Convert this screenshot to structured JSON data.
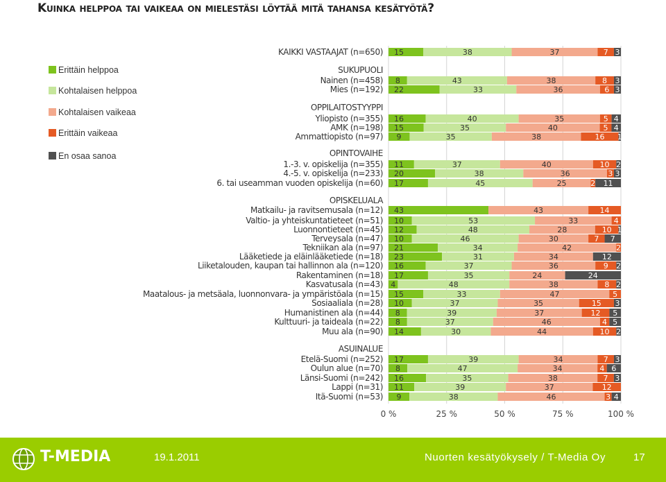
{
  "slide": {
    "title": "Kuinka helppoa tai vaikeaa on mielestäsi löytää mitä tahansa kesätyötä?",
    "date": "19.1.2011",
    "footer": "Nuorten kesätyökysely / T-Media Oy",
    "page": "17",
    "brand": "T-MEDIA"
  },
  "chart_data": {
    "type": "bar",
    "stacked": true,
    "orientation": "horizontal",
    "title": "Kuinka helppoa tai vaikeaa on mielestäsi löytää mitä tahansa kesätyötä?",
    "xlim": [
      0,
      100
    ],
    "xticks": [
      "0 %",
      "25 %",
      "50 %",
      "75 %",
      "100 %"
    ],
    "legend_position": "left",
    "series": [
      {
        "name": "Erittäin helppoa",
        "color": "#7ec31e"
      },
      {
        "name": "Kohtalaisen helppoa",
        "color": "#c6e69c"
      },
      {
        "name": "Kohtalaisen vaikeaa",
        "color": "#f3a98d"
      },
      {
        "name": "Erittäin vaikeaa",
        "color": "#e55a24"
      },
      {
        "name": "En osaa sanoa",
        "color": "#505050"
      }
    ],
    "groups": [
      "KAIKKI VASTAAJAT (n=650)",
      "SUKUPUOLI",
      "OPPILAITOSTYYPPI",
      "OPINTOVAIHE",
      "OPISKELUALA",
      "ASUINALUE"
    ],
    "rows": [
      {
        "group": "KAIKKI VASTAAJAT (n=650)",
        "label": "",
        "values": [
          15,
          38,
          37,
          7,
          3
        ]
      },
      {
        "group": "SUKUPUOLI",
        "label": "Nainen (n=458)",
        "values": [
          8,
          43,
          38,
          8,
          3
        ]
      },
      {
        "group": "SUKUPUOLI",
        "label": "Mies (n=192)",
        "values": [
          22,
          33,
          36,
          6,
          3
        ]
      },
      {
        "group": "OPPILAITOSTYYPPI",
        "label": "Yliopisto (n=355)",
        "values": [
          16,
          40,
          35,
          5,
          4
        ]
      },
      {
        "group": "OPPILAITOSTYYPPI",
        "label": "AMK (n=198)",
        "values": [
          15,
          35,
          40,
          5,
          4
        ]
      },
      {
        "group": "OPPILAITOSTYYPPI",
        "label": "Ammattiopisto (n=97)",
        "values": [
          9,
          35,
          38,
          16,
          1
        ]
      },
      {
        "group": "OPINTOVAIHE",
        "label": "1.-3. v. opiskelija (n=355)",
        "values": [
          11,
          37,
          40,
          10,
          2
        ]
      },
      {
        "group": "OPINTOVAIHE",
        "label": "4.-5. v. opiskelija (n=233)",
        "values": [
          20,
          38,
          36,
          3,
          3
        ]
      },
      {
        "group": "OPINTOVAIHE",
        "label": "6. tai useamman vuoden opiskelija (n=60)",
        "values": [
          17,
          45,
          25,
          2,
          11
        ]
      },
      {
        "group": "OPISKELUALA",
        "label": "Matkailu- ja ravitsemusala (n=12)",
        "values": [
          43,
          0,
          43,
          14,
          0
        ]
      },
      {
        "group": "OPISKELUALA",
        "label": "Valtio- ja yhteiskuntatieteet (n=51)",
        "values": [
          10,
          53,
          33,
          4,
          0
        ]
      },
      {
        "group": "OPISKELUALA",
        "label": "Luonnontieteet (n=45)",
        "values": [
          12,
          48,
          28,
          10,
          1
        ]
      },
      {
        "group": "OPISKELUALA",
        "label": "Terveysala (n=47)",
        "values": [
          10,
          46,
          30,
          7,
          7
        ]
      },
      {
        "group": "OPISKELUALA",
        "label": "Tekniikan ala (n=97)",
        "values": [
          21,
          34,
          42,
          2,
          0
        ]
      },
      {
        "group": "OPISKELUALA",
        "label": "Lääketiede ja eläinlääketiede (n=18)",
        "values": [
          23,
          31,
          34,
          0,
          12
        ]
      },
      {
        "group": "OPISKELUALA",
        "label": "Liiketalouden, kaupan tai hallinnon ala (n=120)",
        "values": [
          16,
          37,
          36,
          9,
          2
        ]
      },
      {
        "group": "OPISKELUALA",
        "label": "Rakentaminen (n=18)",
        "values": [
          17,
          35,
          24,
          0,
          24
        ]
      },
      {
        "group": "OPISKELUALA",
        "label": "Kasvatusala (n=43)",
        "values": [
          4,
          48,
          38,
          8,
          2
        ]
      },
      {
        "group": "OPISKELUALA",
        "label": "Maatalous- ja metsäala, luonnonvara- ja ympäristöala (n=15)",
        "values": [
          15,
          33,
          47,
          5,
          0
        ]
      },
      {
        "group": "OPISKELUALA",
        "label": "Sosiaaliala (n=28)",
        "values": [
          10,
          37,
          35,
          15,
          3
        ]
      },
      {
        "group": "OPISKELUALA",
        "label": "Humanistinen ala (n=44)",
        "values": [
          8,
          39,
          37,
          12,
          5
        ]
      },
      {
        "group": "OPISKELUALA",
        "label": "Kulttuuri- ja taideala (n=22)",
        "values": [
          8,
          37,
          46,
          4,
          5
        ]
      },
      {
        "group": "OPISKELUALA",
        "label": "Muu ala (n=90)",
        "values": [
          14,
          30,
          44,
          10,
          2
        ]
      },
      {
        "group": "ASUINALUE",
        "label": "Etelä-Suomi (n=252)",
        "values": [
          17,
          39,
          34,
          7,
          3
        ]
      },
      {
        "group": "ASUINALUE",
        "label": "Oulun alue (n=70)",
        "values": [
          8,
          47,
          34,
          4,
          6
        ]
      },
      {
        "group": "ASUINALUE",
        "label": "Länsi-Suomi (n=242)",
        "values": [
          16,
          35,
          38,
          7,
          3
        ]
      },
      {
        "group": "ASUINALUE",
        "label": "Lappi (n=31)",
        "values": [
          11,
          39,
          37,
          12,
          0
        ]
      },
      {
        "group": "ASUINALUE",
        "label": "Itä-Suomi (n=53)",
        "values": [
          9,
          38,
          46,
          3,
          4
        ]
      }
    ]
  }
}
